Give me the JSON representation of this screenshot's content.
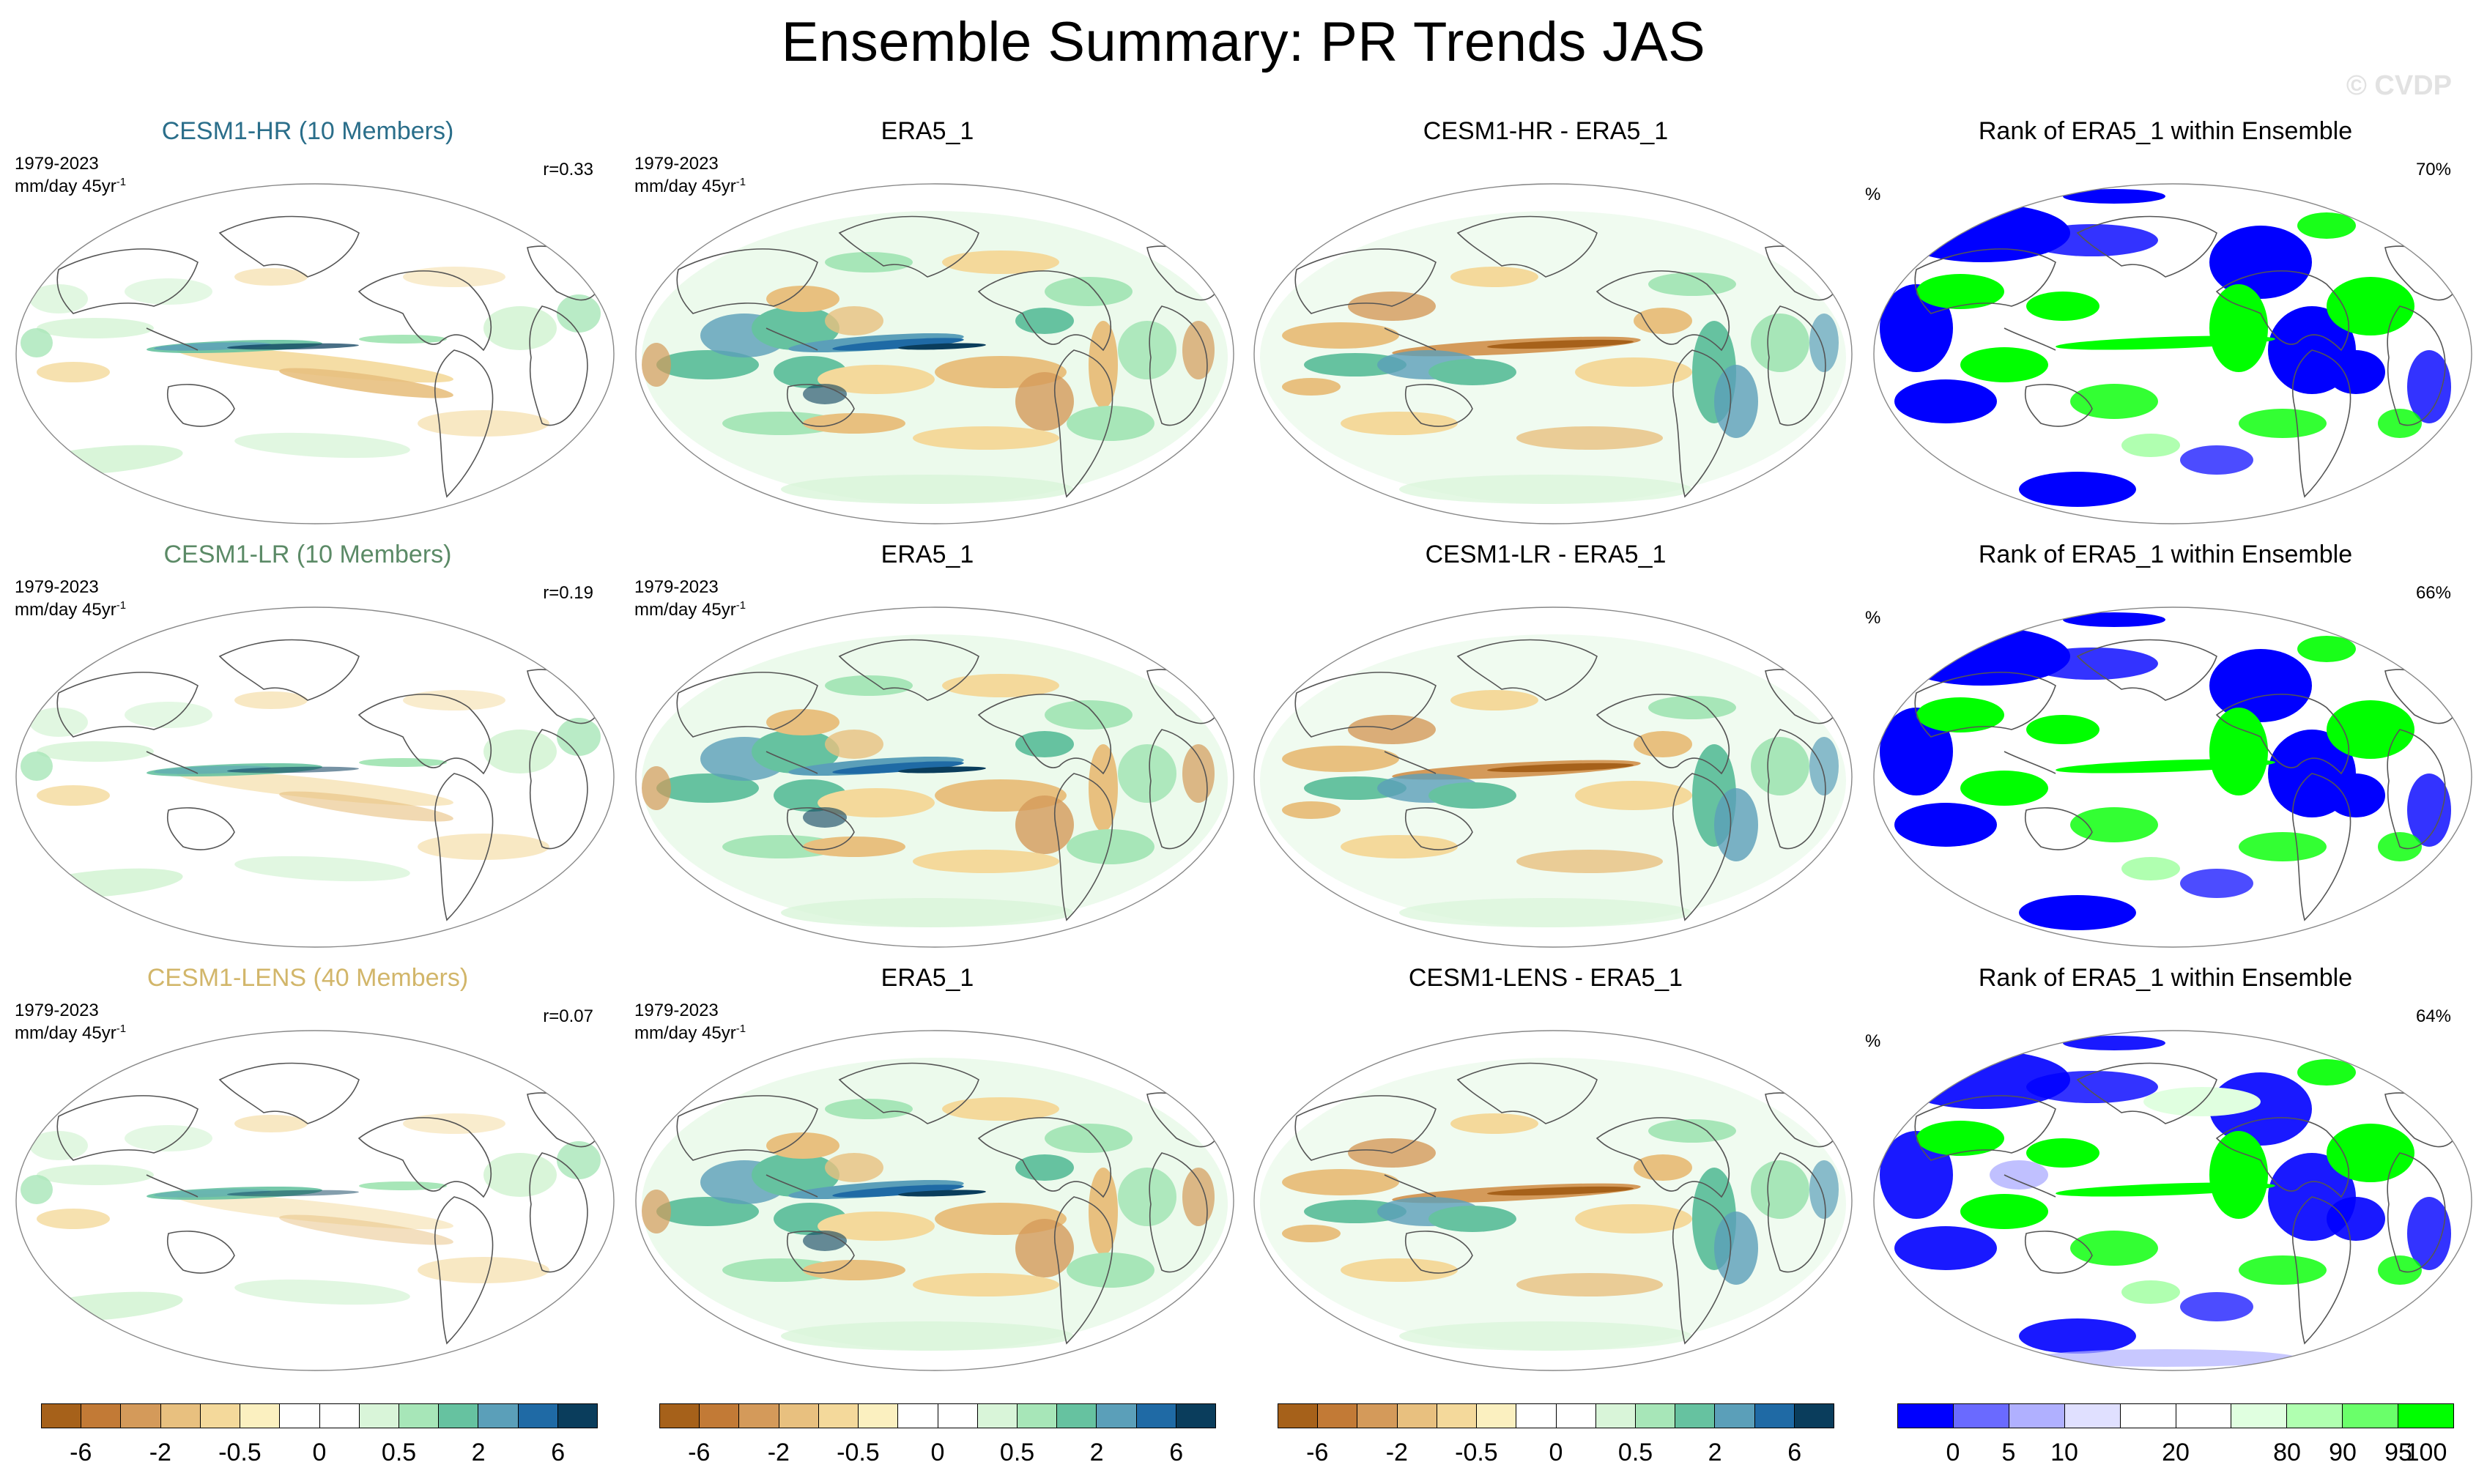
{
  "page": {
    "title": "Ensemble Summary: PR Trends JAS",
    "watermark": "© CVDP"
  },
  "rows": [
    {
      "model": {
        "title": "CESM1-HR (10 Members)",
        "title_color": "#2a6e8a",
        "period": "1979-2023",
        "units": "mm/day 45yr",
        "units_sup": "-1",
        "corr": "r=0.33"
      },
      "obs": {
        "title": "ERA5_1",
        "period": "1979-2023",
        "units": "mm/day 45yr",
        "units_sup": "-1"
      },
      "diff": {
        "title": "CESM1-HR - ERA5_1"
      },
      "rank": {
        "title": "Rank of ERA5_1 within Ensemble",
        "unit": "%",
        "score": "70%"
      }
    },
    {
      "model": {
        "title": "CESM1-LR (10 Members)",
        "title_color": "#5b8a66",
        "period": "1979-2023",
        "units": "mm/day 45yr",
        "units_sup": "-1",
        "corr": "r=0.19"
      },
      "obs": {
        "title": "ERA5_1",
        "period": "1979-2023",
        "units": "mm/day 45yr",
        "units_sup": "-1"
      },
      "diff": {
        "title": "CESM1-LR - ERA5_1"
      },
      "rank": {
        "title": "Rank of ERA5_1 within Ensemble",
        "unit": "%",
        "score": "66%"
      }
    },
    {
      "model": {
        "title": "CESM1-LENS (40 Members)",
        "title_color": "#d2b66a",
        "period": "1979-2023",
        "units": "mm/day 45yr",
        "units_sup": "-1",
        "corr": "r=0.07"
      },
      "obs": {
        "title": "ERA5_1",
        "period": "1979-2023",
        "units": "mm/day 45yr",
        "units_sup": "-1"
      },
      "diff": {
        "title": "CESM1-LENS - ERA5_1"
      },
      "rank": {
        "title": "Rank of ERA5_1 within Ensemble",
        "unit": "%",
        "score": "64%"
      }
    }
  ],
  "legends": {
    "trend": {
      "colors": [
        "#a6611a",
        "#c27a36",
        "#d49a5a",
        "#e8c07f",
        "#f4d99b",
        "#fbf0c0",
        "#ffffff",
        "#ffffff",
        "#d9f5d9",
        "#a7e6b8",
        "#66c2a0",
        "#5b9fb9",
        "#1f6aa5",
        "#0a3d5c"
      ],
      "labels": [
        "-6",
        "-2",
        "-0.5",
        "0",
        "0.5",
        "2",
        "6"
      ]
    },
    "rank": {
      "colors": [
        "#0000ff",
        "#6a6aff",
        "#b0b0ff",
        "#e0e0ff",
        "#ffffff",
        "#ffffff",
        "#e0ffe0",
        "#b0ffb0",
        "#6aff6a",
        "#00ff00"
      ],
      "labels": [
        "0",
        "5",
        "10",
        "20",
        "80",
        "90",
        "95",
        "100"
      ]
    }
  }
}
